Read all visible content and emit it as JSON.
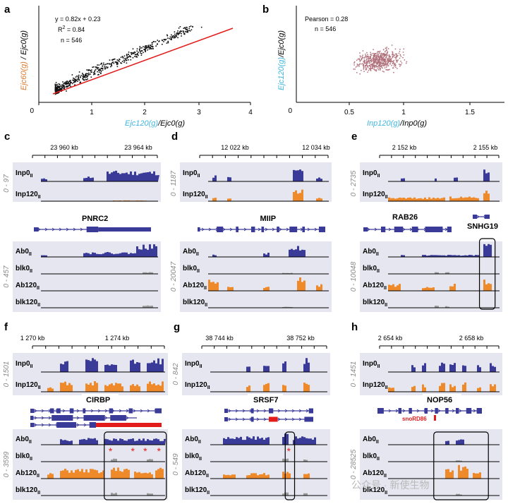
{
  "panels": {
    "a": {
      "label": "a",
      "stats": {
        "eq": "y = 0.82x + 0.23",
        "r2_pre": "R",
        "r2_sup": "2",
        "r2_post": " = 0.84",
        "n": "n = 546"
      },
      "y_axis": {
        "p1": "Ejc60(g)",
        "p2": " / ",
        "p3": "Ejc0(g)"
      },
      "x_axis": {
        "p1": "Ejc120(g)",
        "p2": "/",
        "p3": "Ejc0(g)"
      },
      "xticks": [
        "0",
        "1",
        "2",
        "3",
        "4"
      ],
      "origin": "0"
    },
    "b": {
      "label": "b",
      "stats": {
        "pearson": "Pearson = 0.28",
        "n": "n = 546"
      },
      "y_axis": {
        "p1": "Ejc120(g)",
        "p2": "/",
        "p3": "Ejc0(g)"
      },
      "x_axis": {
        "p1": "Inp120(g)",
        "p2": "/",
        "p3": "Inp0(g)"
      },
      "xticks": [
        "0.5",
        "1",
        "1.5"
      ],
      "origin": "0"
    },
    "c": {
      "label": "c",
      "coords": [
        "23 960 kb",
        "23 964 kb"
      ],
      "range_top": "0 - 97",
      "range_bot": "0 - 457",
      "genes": [
        "PNRC2"
      ]
    },
    "d": {
      "label": "d",
      "coords": [
        "12 022 kb",
        "12 034 kb"
      ],
      "range_top": "0 - 1187",
      "range_bot": "0 - 20047",
      "genes": [
        "MIIP"
      ]
    },
    "e": {
      "label": "e",
      "coords": [
        "2 152 kb",
        "2 155 kb"
      ],
      "range_top": "0 - 2735",
      "range_bot": "0 - 10048",
      "genes": [
        "RAB26",
        "SNHG19"
      ]
    },
    "f": {
      "label": "f",
      "coords": [
        "1 270 kb",
        "1 274 kb"
      ],
      "range_top": "0 - 1501",
      "range_bot": "0 - 3599",
      "genes": [
        "CIRBP"
      ]
    },
    "g": {
      "label": "g",
      "coords": [
        "38 744 kb",
        "38 752 kb"
      ],
      "range_top": "0 - 842",
      "range_bot": "0 - 549",
      "genes": [
        "SRSF7"
      ]
    },
    "h": {
      "label": "h",
      "coords": [
        "2 654 kb",
        "2 658 kb"
      ],
      "range_top": "0 - 1451",
      "range_bot": "0 - 28525",
      "genes": [
        "NOP56",
        "snoRD86"
      ]
    }
  },
  "tracks": {
    "inp0": "Inp0",
    "inp120": "Inp120",
    "ab0": "Ab0",
    "blk0": "blk0",
    "ab120": "Ab120",
    "blk120": "blk120",
    "sub": "II"
  },
  "colors": {
    "blue": "#3a3a99",
    "orange": "#ee8a2a",
    "gray": "#9a9a9a",
    "red": "#e31b1b",
    "panel_bg": "#e6e6f0",
    "scatter_a": "#111111",
    "scatter_b": "#b0707a"
  },
  "watermark": "公众号 · 新使生物"
}
